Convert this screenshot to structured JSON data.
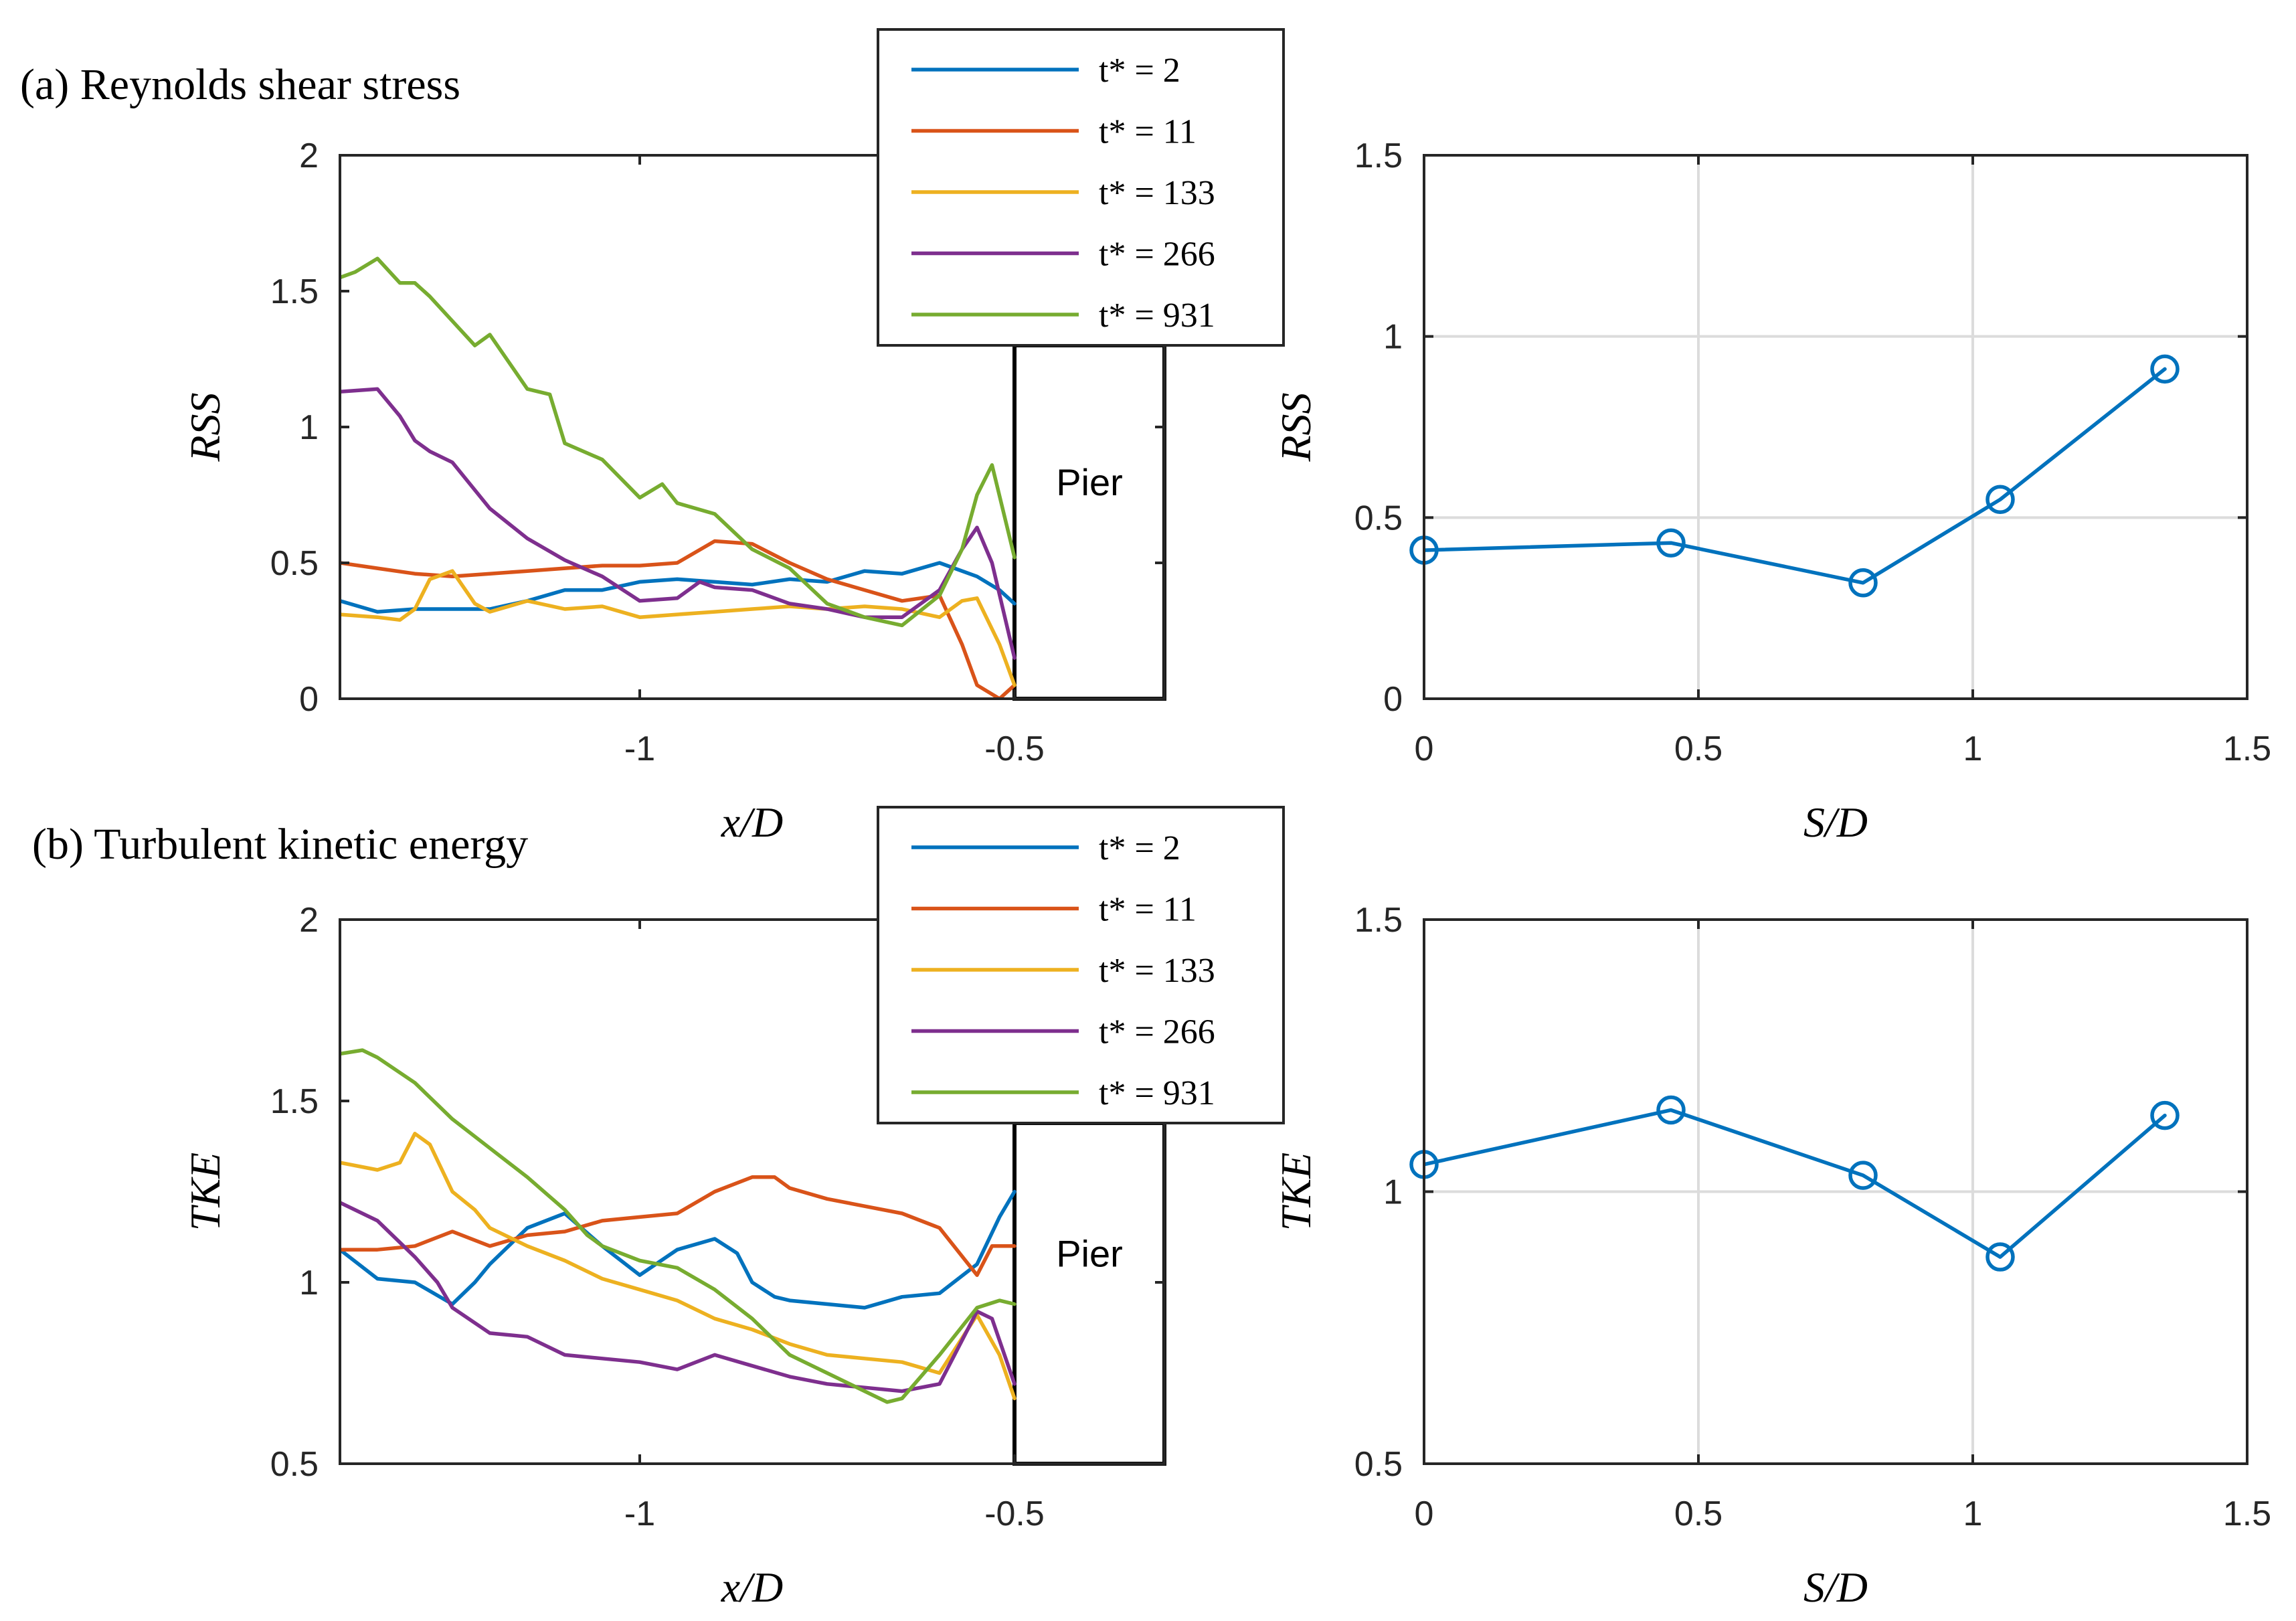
{
  "panels": {
    "a_title": "(a) Reynolds shear stress",
    "b_title": "(b) Turbulent kinetic energy"
  },
  "pier_label": "Pier",
  "chart_data": [
    {
      "id": "a-left",
      "type": "line",
      "title": "(a) Reynolds shear stress",
      "xlabel": "x/D",
      "ylabel": "RSS",
      "xlim": [
        -1.4,
        -0.3
      ],
      "ylim": [
        0,
        2
      ],
      "xticks": [
        -1,
        -0.5
      ],
      "xtick_labels": [
        "-1",
        "-0.5"
      ],
      "yticks": [
        0,
        0.5,
        1,
        1.5,
        2
      ],
      "ytick_labels": [
        "0",
        "0.5",
        "1",
        "1.5",
        "2"
      ],
      "grid": false,
      "legend_location": "top-right",
      "pier_region": [
        -0.5,
        -0.3
      ],
      "series": [
        {
          "name": "t* = 2",
          "color": "#0072BD",
          "x": [
            -1.4,
            -1.35,
            -1.3,
            -1.25,
            -1.2,
            -1.15,
            -1.1,
            -1.05,
            -1.0,
            -0.95,
            -0.9,
            -0.85,
            -0.8,
            -0.75,
            -0.7,
            -0.65,
            -0.6,
            -0.55,
            -0.52,
            -0.5
          ],
          "y": [
            0.36,
            0.32,
            0.33,
            0.33,
            0.33,
            0.36,
            0.4,
            0.4,
            0.43,
            0.44,
            0.43,
            0.42,
            0.44,
            0.43,
            0.47,
            0.46,
            0.5,
            0.45,
            0.4,
            0.35
          ]
        },
        {
          "name": "t* = 11",
          "color": "#D95319",
          "x": [
            -1.4,
            -1.35,
            -1.3,
            -1.25,
            -1.2,
            -1.15,
            -1.1,
            -1.05,
            -1.0,
            -0.95,
            -0.9,
            -0.85,
            -0.8,
            -0.75,
            -0.7,
            -0.65,
            -0.6,
            -0.57,
            -0.55,
            -0.52,
            -0.5
          ],
          "y": [
            0.5,
            0.48,
            0.46,
            0.45,
            0.46,
            0.47,
            0.48,
            0.49,
            0.49,
            0.5,
            0.58,
            0.57,
            0.5,
            0.44,
            0.4,
            0.36,
            0.38,
            0.2,
            0.05,
            0.0,
            0.05
          ]
        },
        {
          "name": "t* = 133",
          "color": "#EDB120",
          "x": [
            -1.4,
            -1.35,
            -1.32,
            -1.3,
            -1.28,
            -1.25,
            -1.22,
            -1.2,
            -1.15,
            -1.1,
            -1.05,
            -1.0,
            -0.95,
            -0.9,
            -0.85,
            -0.8,
            -0.75,
            -0.7,
            -0.65,
            -0.6,
            -0.57,
            -0.55,
            -0.52,
            -0.5
          ],
          "y": [
            0.31,
            0.3,
            0.29,
            0.33,
            0.44,
            0.47,
            0.35,
            0.32,
            0.36,
            0.33,
            0.34,
            0.3,
            0.31,
            0.32,
            0.33,
            0.34,
            0.33,
            0.34,
            0.33,
            0.3,
            0.36,
            0.37,
            0.2,
            0.05
          ]
        },
        {
          "name": "t* = 266",
          "color": "#7E2F8E",
          "x": [
            -1.4,
            -1.35,
            -1.32,
            -1.3,
            -1.28,
            -1.25,
            -1.2,
            -1.15,
            -1.1,
            -1.05,
            -1.0,
            -0.95,
            -0.92,
            -0.9,
            -0.85,
            -0.8,
            -0.75,
            -0.7,
            -0.65,
            -0.6,
            -0.57,
            -0.55,
            -0.53,
            -0.5
          ],
          "y": [
            1.13,
            1.14,
            1.04,
            0.95,
            0.91,
            0.87,
            0.7,
            0.59,
            0.51,
            0.45,
            0.36,
            0.37,
            0.43,
            0.41,
            0.4,
            0.35,
            0.33,
            0.3,
            0.3,
            0.4,
            0.55,
            0.63,
            0.5,
            0.15
          ]
        },
        {
          "name": "t* = 931",
          "color": "#77AC30",
          "x": [
            -1.4,
            -1.38,
            -1.35,
            -1.32,
            -1.3,
            -1.28,
            -1.25,
            -1.22,
            -1.2,
            -1.17,
            -1.15,
            -1.12,
            -1.1,
            -1.05,
            -1.0,
            -0.97,
            -0.95,
            -0.9,
            -0.85,
            -0.8,
            -0.75,
            -0.7,
            -0.65,
            -0.6,
            -0.57,
            -0.55,
            -0.53,
            -0.5
          ],
          "y": [
            1.55,
            1.57,
            1.62,
            1.53,
            1.53,
            1.48,
            1.39,
            1.3,
            1.34,
            1.22,
            1.14,
            1.12,
            0.94,
            0.88,
            0.74,
            0.79,
            0.72,
            0.68,
            0.55,
            0.48,
            0.35,
            0.3,
            0.27,
            0.38,
            0.55,
            0.75,
            0.86,
            0.52
          ]
        }
      ]
    },
    {
      "id": "a-right",
      "type": "line",
      "xlabel": "S/D",
      "ylabel": "RSS",
      "xlim": [
        0,
        1.5
      ],
      "ylim": [
        0,
        1.5
      ],
      "xticks": [
        0,
        0.5,
        1,
        1.5
      ],
      "xtick_labels": [
        "0",
        "0.5",
        "1",
        "1.5"
      ],
      "yticks": [
        0,
        0.5,
        1,
        1.5
      ],
      "ytick_labels": [
        "0",
        "0.5",
        "1",
        "1.5"
      ],
      "grid": true,
      "series": [
        {
          "name": "RSS",
          "color": "#0072BD",
          "marker": "circle",
          "x": [
            0,
            0.45,
            0.8,
            1.05,
            1.35
          ],
          "y": [
            0.41,
            0.43,
            0.32,
            0.55,
            0.91
          ]
        }
      ]
    },
    {
      "id": "b-left",
      "type": "line",
      "title": "(b) Turbulent kinetic energy",
      "xlabel": "x/D",
      "ylabel": "TKE",
      "xlim": [
        -1.4,
        -0.3
      ],
      "ylim": [
        0.5,
        2
      ],
      "xticks": [
        -1,
        -0.5
      ],
      "xtick_labels": [
        "-1",
        "-0.5"
      ],
      "yticks": [
        0.5,
        1,
        1.5,
        2
      ],
      "ytick_labels": [
        "0.5",
        "1",
        "1.5",
        "2"
      ],
      "grid": false,
      "legend_location": "top-right",
      "pier_region": [
        -0.5,
        -0.3
      ],
      "series": [
        {
          "name": "t* = 2",
          "color": "#0072BD",
          "x": [
            -1.4,
            -1.35,
            -1.3,
            -1.25,
            -1.22,
            -1.2,
            -1.15,
            -1.1,
            -1.05,
            -1.0,
            -0.95,
            -0.9,
            -0.87,
            -0.85,
            -0.82,
            -0.8,
            -0.75,
            -0.7,
            -0.65,
            -0.6,
            -0.55,
            -0.52,
            -0.5
          ],
          "y": [
            1.09,
            1.01,
            1.0,
            0.94,
            1.0,
            1.05,
            1.15,
            1.19,
            1.1,
            1.02,
            1.09,
            1.12,
            1.08,
            1.0,
            0.96,
            0.95,
            0.94,
            0.93,
            0.96,
            0.97,
            1.05,
            1.18,
            1.25
          ]
        },
        {
          "name": "t* = 11",
          "color": "#D95319",
          "x": [
            -1.4,
            -1.35,
            -1.3,
            -1.25,
            -1.2,
            -1.15,
            -1.1,
            -1.05,
            -1.0,
            -0.95,
            -0.9,
            -0.85,
            -0.82,
            -0.8,
            -0.75,
            -0.7,
            -0.65,
            -0.6,
            -0.55,
            -0.53,
            -0.5
          ],
          "y": [
            1.09,
            1.09,
            1.1,
            1.14,
            1.1,
            1.13,
            1.14,
            1.17,
            1.18,
            1.19,
            1.25,
            1.29,
            1.29,
            1.26,
            1.23,
            1.21,
            1.19,
            1.15,
            1.02,
            1.1,
            1.1
          ]
        },
        {
          "name": "t* = 133",
          "color": "#EDB120",
          "x": [
            -1.4,
            -1.35,
            -1.32,
            -1.3,
            -1.28,
            -1.25,
            -1.22,
            -1.2,
            -1.15,
            -1.1,
            -1.05,
            -1.0,
            -0.95,
            -0.9,
            -0.85,
            -0.8,
            -0.75,
            -0.7,
            -0.65,
            -0.6,
            -0.55,
            -0.52,
            -0.5
          ],
          "y": [
            1.33,
            1.31,
            1.33,
            1.41,
            1.38,
            1.25,
            1.2,
            1.15,
            1.1,
            1.06,
            1.01,
            0.98,
            0.95,
            0.9,
            0.87,
            0.83,
            0.8,
            0.79,
            0.78,
            0.75,
            0.91,
            0.8,
            0.68
          ]
        },
        {
          "name": "t* = 266",
          "color": "#7E2F8E",
          "x": [
            -1.4,
            -1.35,
            -1.3,
            -1.27,
            -1.25,
            -1.2,
            -1.15,
            -1.1,
            -1.05,
            -1.0,
            -0.95,
            -0.9,
            -0.85,
            -0.8,
            -0.75,
            -0.7,
            -0.65,
            -0.6,
            -0.55,
            -0.53,
            -0.5
          ],
          "y": [
            1.22,
            1.17,
            1.07,
            1.0,
            0.93,
            0.86,
            0.85,
            0.8,
            0.79,
            0.78,
            0.76,
            0.8,
            0.77,
            0.74,
            0.72,
            0.71,
            0.7,
            0.72,
            0.92,
            0.9,
            0.72
          ]
        },
        {
          "name": "t* = 931",
          "color": "#77AC30",
          "x": [
            -1.4,
            -1.37,
            -1.35,
            -1.3,
            -1.25,
            -1.2,
            -1.15,
            -1.1,
            -1.07,
            -1.05,
            -1.0,
            -0.95,
            -0.9,
            -0.85,
            -0.8,
            -0.75,
            -0.7,
            -0.67,
            -0.65,
            -0.6,
            -0.55,
            -0.52,
            -0.5
          ],
          "y": [
            1.63,
            1.64,
            1.62,
            1.55,
            1.45,
            1.37,
            1.29,
            1.2,
            1.13,
            1.1,
            1.06,
            1.04,
            0.98,
            0.9,
            0.8,
            0.75,
            0.7,
            0.67,
            0.68,
            0.8,
            0.93,
            0.95,
            0.94
          ]
        }
      ]
    },
    {
      "id": "b-right",
      "type": "line",
      "xlabel": "S/D",
      "ylabel": "TKE",
      "xlim": [
        0,
        1.5
      ],
      "ylim": [
        0.5,
        1.5
      ],
      "xticks": [
        0,
        0.5,
        1,
        1.5
      ],
      "xtick_labels": [
        "0",
        "0.5",
        "1",
        "1.5"
      ],
      "yticks": [
        0.5,
        1,
        1.5
      ],
      "ytick_labels": [
        "0.5",
        "1",
        "1.5"
      ],
      "grid": true,
      "series": [
        {
          "name": "TKE",
          "color": "#0072BD",
          "marker": "circle",
          "x": [
            0,
            0.45,
            0.8,
            1.05,
            1.35
          ],
          "y": [
            1.05,
            1.15,
            1.03,
            0.88,
            1.14
          ]
        }
      ]
    }
  ]
}
